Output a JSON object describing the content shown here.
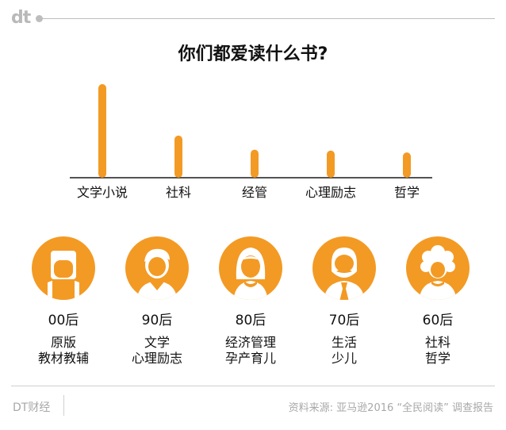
{
  "header": {
    "logo": "dt"
  },
  "chart_data": {
    "type": "bar",
    "title": "你们都爱读什么书?",
    "categories": [
      "文学小说",
      "社科",
      "经管",
      "心理励志",
      "哲学"
    ],
    "values": [
      100,
      45,
      30,
      29,
      27
    ],
    "ylim": [
      0,
      100
    ],
    "grid": false,
    "bar_color": "#f39a24"
  },
  "generations": [
    {
      "label": "00后",
      "books": [
        "原版",
        "教材教辅"
      ],
      "icon": "girl-with-bow-icon"
    },
    {
      "label": "90后",
      "books": [
        "文学",
        "心理励志"
      ],
      "icon": "boy-icon"
    },
    {
      "label": "80后",
      "books": [
        "经济管理",
        "孕产育儿"
      ],
      "icon": "woman-icon"
    },
    {
      "label": "70后",
      "books": [
        "生活",
        "少儿"
      ],
      "icon": "bearded-man-with-tie-icon"
    },
    {
      "label": "60后",
      "books": [
        "社科",
        "哲学"
      ],
      "icon": "curly-hair-woman-icon"
    }
  ],
  "colors": {
    "accent": "#f39a24",
    "dark": "#1a1a1a"
  },
  "footer": {
    "brand": "DT财经",
    "source": "资料来源: 亚马逊2016 “全民阅读” 调查报告"
  }
}
